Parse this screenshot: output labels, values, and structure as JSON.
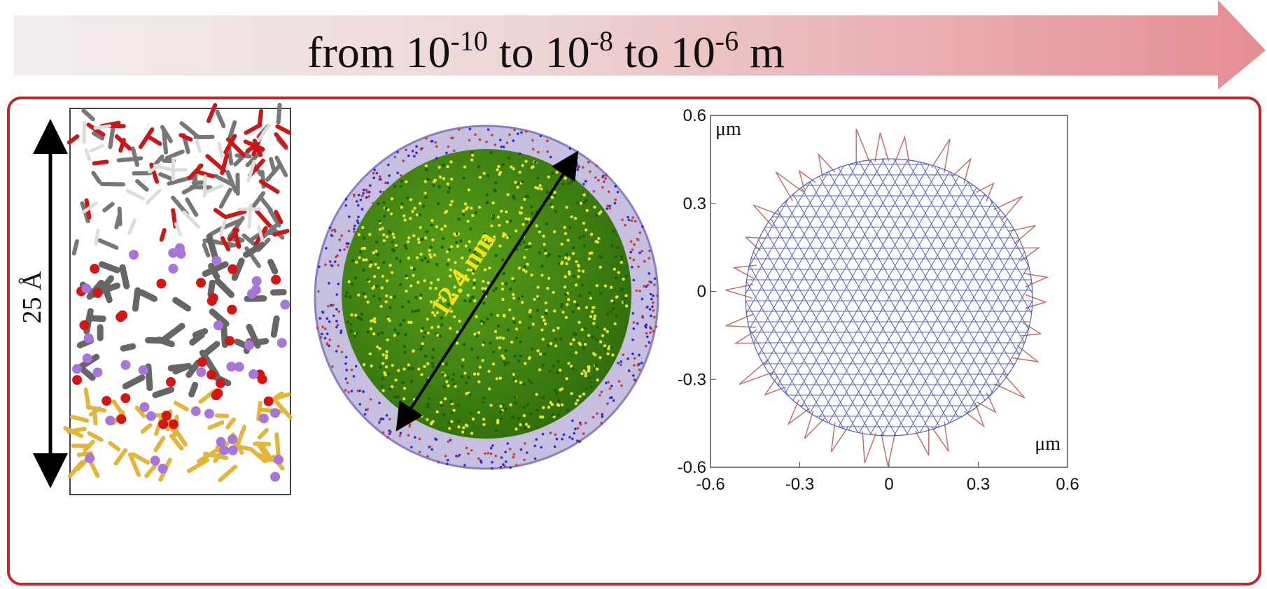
{
  "header": {
    "title_parts": [
      "from 10",
      "-10",
      " to 10",
      "-8",
      " to 10",
      "-6",
      " m"
    ]
  },
  "panels": {
    "molecular": {
      "scale_label": "25 Å"
    },
    "nanoparticle": {
      "scale_label": "12.4 nm"
    },
    "mesh": {
      "y_unit": "μm",
      "x_unit": "μm",
      "xticks": [
        -0.6,
        -0.3,
        0,
        0.3,
        0.6
      ],
      "yticks": [
        0.6,
        0.3,
        0,
        -0.3,
        -0.6
      ],
      "xlim": [
        -0.6,
        0.6
      ],
      "ylim": [
        -0.6,
        0.6
      ]
    }
  }
}
